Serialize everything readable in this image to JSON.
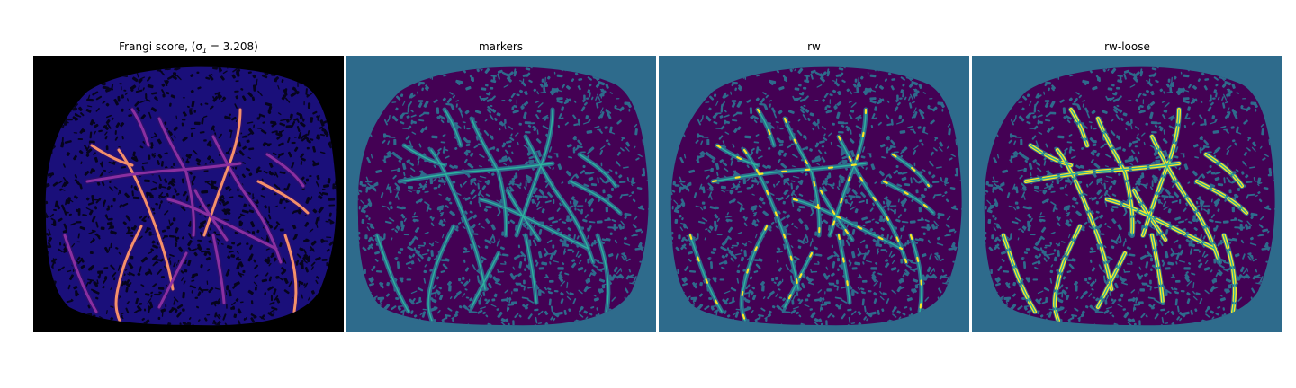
{
  "figure": {
    "panels": [
      {
        "id": "frangi",
        "title": "Frangi score, (σ",
        "title_sub": "1",
        "title_tail": " = 3.208)"
      },
      {
        "id": "markers",
        "title": "markers"
      },
      {
        "id": "rw",
        "title": "rw"
      },
      {
        "id": "rw_loose",
        "title": "rw-loose"
      }
    ]
  },
  "colors": {
    "frangi_bg": "#000000",
    "frangi_tissue": "#1a0f7a",
    "frangi_pore": "#06041c",
    "frangi_vessel": "#8a2fa0",
    "frangi_vessel_hot": "#f5906a",
    "label_bg": "#2e6b8c",
    "label_tissue": "#440154",
    "label_vessel_marker": "#2db39e",
    "label_vessel_yellow": "#fde725"
  }
}
